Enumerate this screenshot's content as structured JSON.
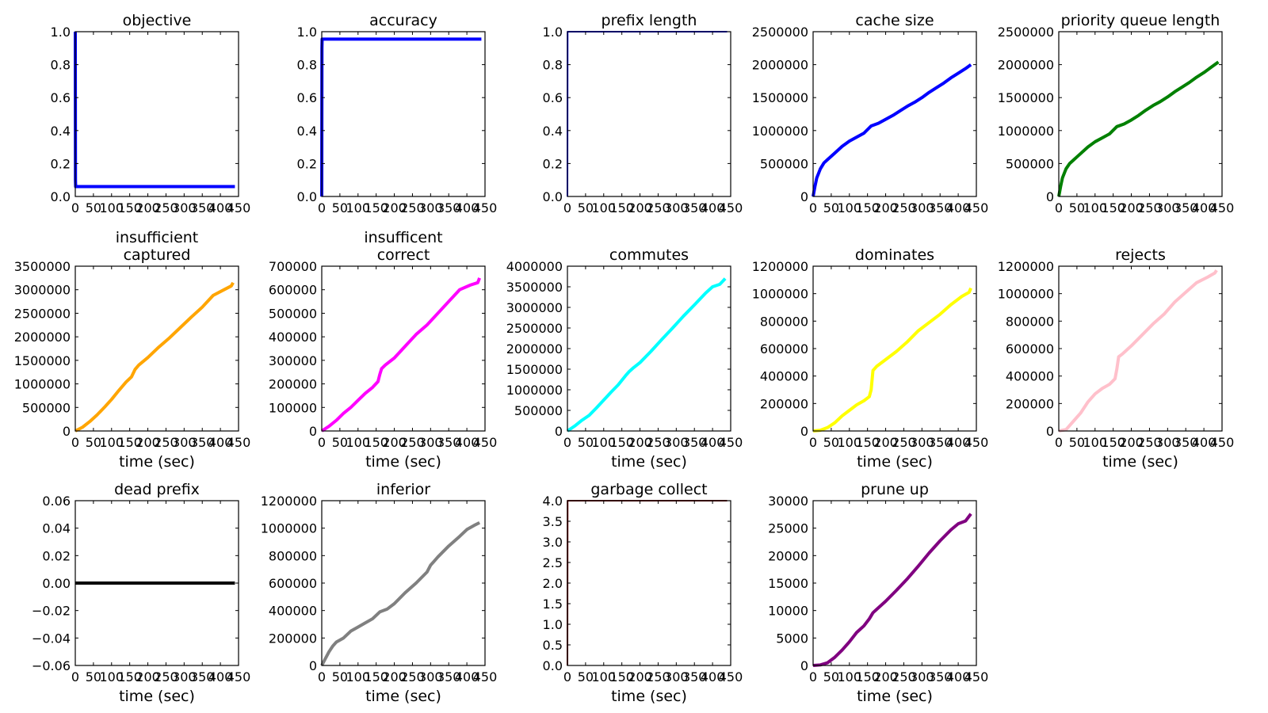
{
  "chart_data": [
    {
      "type": "line",
      "title": "objective",
      "xlabel": "",
      "xlim": [
        0,
        450
      ],
      "ylim": [
        0,
        1.0
      ],
      "xticks": [
        "0",
        "50",
        "100",
        "150",
        "200",
        "250",
        "300",
        "350",
        "400",
        "450"
      ],
      "yticks": [
        "0.0",
        "0.2",
        "0.4",
        "0.6",
        "0.8",
        "1.0"
      ],
      "color": "#0000ff",
      "series": [
        {
          "x": [
            0,
            0.5,
            1,
            440
          ],
          "y": [
            1.0,
            0.1,
            0.06,
            0.06
          ]
        }
      ]
    },
    {
      "type": "line",
      "title": "accuracy",
      "xlabel": "",
      "xlim": [
        0,
        450
      ],
      "ylim": [
        0,
        1.0
      ],
      "xticks": [
        "0",
        "50",
        "100",
        "150",
        "200",
        "250",
        "300",
        "350",
        "400",
        "450"
      ],
      "yticks": [
        "0.0",
        "0.2",
        "0.4",
        "0.6",
        "0.8",
        "1.0"
      ],
      "color": "#0000ff",
      "series": [
        {
          "x": [
            0,
            0.5,
            1,
            440
          ],
          "y": [
            0,
            0.9,
            0.955,
            0.955
          ]
        }
      ]
    },
    {
      "type": "line",
      "title": "prefix length",
      "xlabel": "",
      "xlim": [
        0,
        450
      ],
      "ylim": [
        0,
        1.0
      ],
      "xticks": [
        "0",
        "50",
        "100",
        "150",
        "200",
        "250",
        "300",
        "350",
        "400",
        "450"
      ],
      "yticks": [
        "0.0",
        "0.2",
        "0.4",
        "0.6",
        "0.8",
        "1.0"
      ],
      "color": "#0000ff",
      "series": [
        {
          "x": [
            0,
            0.5,
            1,
            440
          ],
          "y": [
            0,
            1,
            1,
            1
          ]
        }
      ]
    },
    {
      "type": "line",
      "title": "cache size",
      "xlabel": "",
      "xlim": [
        0,
        450
      ],
      "ylim": [
        0,
        2500000
      ],
      "xticks": [
        "0",
        "50",
        "100",
        "150",
        "200",
        "250",
        "300",
        "350",
        "400",
        "450"
      ],
      "yticks": [
        "0",
        "500000",
        "1000000",
        "1500000",
        "2000000",
        "2500000"
      ],
      "color": "#0000ff",
      "series": [
        {
          "x": [
            0,
            5,
            10,
            20,
            30,
            40,
            50,
            60,
            80,
            100,
            120,
            140,
            160,
            180,
            200,
            220,
            240,
            260,
            280,
            300,
            320,
            340,
            360,
            380,
            400,
            420,
            435
          ],
          "y": [
            0,
            150000,
            280000,
            420000,
            510000,
            560000,
            610000,
            660000,
            760000,
            840000,
            900000,
            960000,
            1070000,
            1110000,
            1170000,
            1230000,
            1300000,
            1370000,
            1430000,
            1500000,
            1580000,
            1650000,
            1720000,
            1800000,
            1870000,
            1940000,
            2000000
          ]
        }
      ]
    },
    {
      "type": "line",
      "title": "priority queue length",
      "xlabel": "",
      "xlim": [
        0,
        450
      ],
      "ylim": [
        0,
        2500000
      ],
      "xticks": [
        "0",
        "50",
        "100",
        "150",
        "200",
        "250",
        "300",
        "350",
        "400",
        "450"
      ],
      "yticks": [
        "0",
        "500000",
        "1000000",
        "1500000",
        "2000000",
        "2500000"
      ],
      "color": "#008000",
      "series": [
        {
          "x": [
            0,
            5,
            10,
            20,
            30,
            40,
            50,
            60,
            80,
            100,
            120,
            140,
            160,
            180,
            200,
            220,
            240,
            260,
            280,
            300,
            320,
            340,
            360,
            380,
            400,
            420,
            440
          ],
          "y": [
            0,
            150000,
            280000,
            420000,
            500000,
            550000,
            600000,
            650000,
            750000,
            830000,
            890000,
            950000,
            1060000,
            1100000,
            1160000,
            1230000,
            1310000,
            1380000,
            1440000,
            1510000,
            1590000,
            1660000,
            1730000,
            1810000,
            1880000,
            1960000,
            2040000
          ]
        }
      ]
    },
    {
      "type": "line",
      "title": "insufficient\ncaptured",
      "xlabel": "time (sec)",
      "xlim": [
        0,
        450
      ],
      "ylim": [
        0,
        3500000
      ],
      "xticks": [
        "0",
        "50",
        "100",
        "150",
        "200",
        "250",
        "300",
        "350",
        "400",
        "450"
      ],
      "yticks": [
        "0",
        "500000",
        "1000000",
        "1500000",
        "2000000",
        "2500000",
        "3000000",
        "3500000"
      ],
      "color": "#ffa500",
      "series": [
        {
          "x": [
            0,
            20,
            40,
            60,
            80,
            100,
            120,
            140,
            155,
            165,
            175,
            200,
            230,
            260,
            290,
            320,
            350,
            380,
            410,
            430,
            435
          ],
          "y": [
            0,
            80000,
            200000,
            340000,
            500000,
            670000,
            860000,
            1040000,
            1150000,
            1310000,
            1400000,
            1560000,
            1780000,
            1980000,
            2200000,
            2420000,
            2630000,
            2880000,
            3000000,
            3080000,
            3150000
          ]
        }
      ]
    },
    {
      "type": "line",
      "title": "insufficent\ncorrect",
      "xlabel": "time (sec)",
      "xlim": [
        0,
        450
      ],
      "ylim": [
        0,
        700000
      ],
      "xticks": [
        "0",
        "50",
        "100",
        "150",
        "200",
        "250",
        "300",
        "350",
        "400",
        "450"
      ],
      "yticks": [
        "0",
        "100000",
        "200000",
        "300000",
        "400000",
        "500000",
        "600000",
        "700000"
      ],
      "color": "#ff00ff",
      "series": [
        {
          "x": [
            0,
            20,
            40,
            60,
            80,
            100,
            120,
            140,
            155,
            160,
            165,
            175,
            200,
            230,
            260,
            290,
            320,
            350,
            380,
            410,
            430,
            435
          ],
          "y": [
            0,
            20000,
            45000,
            75000,
            100000,
            130000,
            160000,
            185000,
            210000,
            240000,
            265000,
            280000,
            310000,
            360000,
            410000,
            450000,
            500000,
            550000,
            600000,
            620000,
            630000,
            650000
          ]
        }
      ]
    },
    {
      "type": "line",
      "title": "commutes",
      "xlabel": "time (sec)",
      "xlim": [
        0,
        450
      ],
      "ylim": [
        0,
        4000000
      ],
      "xticks": [
        "0",
        "50",
        "100",
        "150",
        "200",
        "250",
        "300",
        "350",
        "400",
        "450"
      ],
      "yticks": [
        "0",
        "500000",
        "1000000",
        "1500000",
        "2000000",
        "2500000",
        "3000000",
        "3500000",
        "4000000"
      ],
      "color": "#00ffff",
      "series": [
        {
          "x": [
            0,
            20,
            40,
            60,
            80,
            100,
            120,
            140,
            160,
            170,
            180,
            200,
            230,
            260,
            290,
            320,
            350,
            380,
            400,
            420,
            435
          ],
          "y": [
            0,
            120000,
            260000,
            380000,
            560000,
            750000,
            940000,
            1120000,
            1340000,
            1440000,
            1520000,
            1660000,
            1930000,
            2220000,
            2500000,
            2790000,
            3060000,
            3340000,
            3500000,
            3560000,
            3700000
          ]
        }
      ]
    },
    {
      "type": "line",
      "title": "dominates",
      "xlabel": "time (sec)",
      "xlim": [
        0,
        450
      ],
      "ylim": [
        0,
        1200000
      ],
      "xticks": [
        "0",
        "50",
        "100",
        "150",
        "200",
        "250",
        "300",
        "350",
        "400",
        "450"
      ],
      "yticks": [
        "0",
        "200000",
        "400000",
        "600000",
        "800000",
        "1000000",
        "1200000"
      ],
      "color": "#ffff00",
      "series": [
        {
          "x": [
            0,
            20,
            40,
            60,
            80,
            100,
            120,
            140,
            155,
            160,
            165,
            175,
            200,
            230,
            260,
            290,
            320,
            350,
            380,
            410,
            430,
            435
          ],
          "y": [
            0,
            5000,
            25000,
            60000,
            110000,
            150000,
            190000,
            220000,
            250000,
            300000,
            440000,
            470000,
            520000,
            580000,
            650000,
            730000,
            790000,
            850000,
            920000,
            980000,
            1010000,
            1040000
          ]
        }
      ]
    },
    {
      "type": "line",
      "title": "rejects",
      "xlabel": "time (sec)",
      "xlim": [
        0,
        450
      ],
      "ylim": [
        0,
        1200000
      ],
      "xticks": [
        "0",
        "50",
        "100",
        "150",
        "200",
        "250",
        "300",
        "350",
        "400",
        "450"
      ],
      "yticks": [
        "0",
        "200000",
        "400000",
        "600000",
        "800000",
        "1000000",
        "1200000"
      ],
      "color": "#ffc0cb",
      "series": [
        {
          "x": [
            0,
            20,
            40,
            60,
            80,
            100,
            120,
            140,
            155,
            160,
            165,
            175,
            200,
            230,
            260,
            290,
            320,
            350,
            380,
            410,
            430,
            435
          ],
          "y": [
            0,
            10000,
            70000,
            130000,
            210000,
            270000,
            310000,
            340000,
            380000,
            450000,
            540000,
            560000,
            620000,
            700000,
            780000,
            850000,
            940000,
            1010000,
            1080000,
            1120000,
            1150000,
            1170000
          ]
        }
      ]
    },
    {
      "type": "line",
      "title": "dead prefix",
      "xlabel": "time (sec)",
      "xlim": [
        0,
        450
      ],
      "ylim": [
        -0.06,
        0.06
      ],
      "xticks": [
        "0",
        "50",
        "100",
        "150",
        "200",
        "250",
        "300",
        "350",
        "400",
        "450"
      ],
      "yticks": [
        "−0.06",
        "−0.04",
        "−0.02",
        "0.00",
        "0.02",
        "0.04",
        "0.06"
      ],
      "color": "#000000",
      "series": [
        {
          "x": [
            0,
            440
          ],
          "y": [
            0,
            0
          ]
        }
      ]
    },
    {
      "type": "line",
      "title": "inferior",
      "xlabel": "time (sec)",
      "xlim": [
        0,
        450
      ],
      "ylim": [
        0,
        1200000
      ],
      "xticks": [
        "0",
        "50",
        "100",
        "150",
        "200",
        "250",
        "300",
        "350",
        "400",
        "450"
      ],
      "yticks": [
        "0",
        "200000",
        "400000",
        "600000",
        "800000",
        "1000000",
        "1200000"
      ],
      "color": "#808080",
      "series": [
        {
          "x": [
            0,
            10,
            20,
            30,
            40,
            60,
            80,
            100,
            120,
            140,
            160,
            180,
            200,
            230,
            260,
            290,
            300,
            310,
            320,
            350,
            380,
            400,
            420,
            435
          ],
          "y": [
            0,
            50000,
            100000,
            140000,
            170000,
            200000,
            250000,
            280000,
            310000,
            340000,
            390000,
            410000,
            450000,
            530000,
            600000,
            680000,
            730000,
            760000,
            790000,
            870000,
            940000,
            990000,
            1020000,
            1040000
          ]
        }
      ]
    },
    {
      "type": "line",
      "title": "garbage collect",
      "xlabel": "time (sec)",
      "xlim": [
        0,
        450
      ],
      "ylim": [
        0,
        4.0
      ],
      "xticks": [
        "0",
        "50",
        "100",
        "150",
        "200",
        "250",
        "300",
        "350",
        "400",
        "450"
      ],
      "yticks": [
        "0.0",
        "0.5",
        "1.0",
        "1.5",
        "2.0",
        "2.5",
        "3.0",
        "3.5",
        "4.0"
      ],
      "color": "#800000",
      "series": [
        {
          "x": [
            0,
            0.5,
            1,
            440
          ],
          "y": [
            0,
            4,
            4,
            4
          ]
        }
      ]
    },
    {
      "type": "line",
      "title": "prune up",
      "xlabel": "time (sec)",
      "xlim": [
        0,
        450
      ],
      "ylim": [
        0,
        30000
      ],
      "xticks": [
        "0",
        "50",
        "100",
        "150",
        "200",
        "250",
        "300",
        "350",
        "400",
        "450"
      ],
      "yticks": [
        "0",
        "5000",
        "10000",
        "15000",
        "20000",
        "25000",
        "30000"
      ],
      "color": "#800080",
      "series": [
        {
          "x": [
            0,
            20,
            40,
            60,
            80,
            100,
            120,
            140,
            155,
            165,
            175,
            200,
            230,
            260,
            290,
            320,
            350,
            380,
            400,
            420,
            435
          ],
          "y": [
            0,
            100,
            500,
            1500,
            2800,
            4300,
            6000,
            7200,
            8500,
            9600,
            10200,
            11700,
            13700,
            15800,
            18100,
            20500,
            22700,
            24700,
            25800,
            26300,
            27600
          ]
        }
      ]
    }
  ]
}
